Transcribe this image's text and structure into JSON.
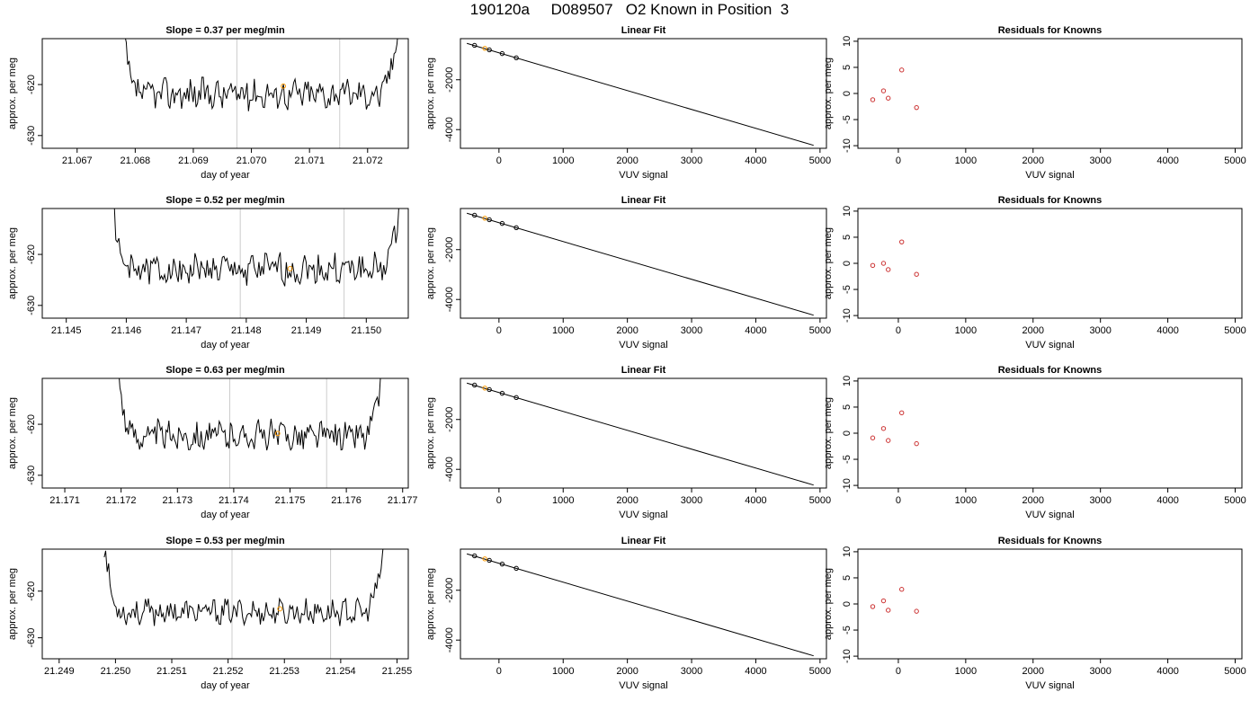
{
  "figure": {
    "title": "190120a     D089507   O2 Known in Position  3",
    "colors": {
      "line": "#000000",
      "orange": "#ff9900",
      "red": "#cc3333",
      "vline": "#cccccc",
      "frame": "#000000"
    }
  },
  "chart_data": [
    {
      "type": "line",
      "panel": "timeseries",
      "row": 0,
      "title": "Slope =  0.37  per meg/min",
      "xlabel": "day of year",
      "ylabel": "approx. per meg",
      "xlim": [
        21.0664,
        21.0727
      ],
      "ylim": [
        -632.5,
        -611.0
      ],
      "xticks": [
        21.067,
        21.068,
        21.069,
        21.07,
        21.071,
        21.072
      ],
      "xtick_labels": [
        "21.067",
        "21.068",
        "21.069",
        "21.070",
        "21.071",
        "21.072"
      ],
      "yticks": [
        -630,
        -620
      ],
      "ytick_labels": [
        "-630",
        "-620"
      ],
      "vlines": [
        21.06975,
        21.07152
      ],
      "x_start": 21.06777,
      "x_end": 21.07253,
      "y_mean": -621.8,
      "y_amp": 2.6,
      "seed": 37,
      "marker": {
        "x": 21.07055,
        "y": -620.3
      },
      "grid": false
    },
    {
      "type": "line",
      "panel": "timeseries",
      "row": 1,
      "title": "Slope =  0.52  per meg/min",
      "xlabel": "day of year",
      "ylabel": "approx. per meg",
      "xlim": [
        21.1446,
        21.1507
      ],
      "ylim": [
        -632.5,
        -611.0
      ],
      "xticks": [
        21.145,
        21.146,
        21.147,
        21.148,
        21.149,
        21.15
      ],
      "xtick_labels": [
        "21.145",
        "21.146",
        "21.147",
        "21.148",
        "21.149",
        "21.150"
      ],
      "yticks": [
        -630,
        -620
      ],
      "ytick_labels": [
        "-630",
        "-620"
      ],
      "vlines": [
        21.1479,
        21.14963
      ],
      "x_start": 21.14575,
      "x_end": 21.15057,
      "y_mean": -623.0,
      "y_amp": 2.7,
      "seed": 52,
      "marker": {
        "x": 21.14873,
        "y": -622.8
      },
      "grid": false
    },
    {
      "type": "line",
      "panel": "timeseries",
      "row": 2,
      "title": "Slope =  0.63  per meg/min",
      "xlabel": "day of year",
      "ylabel": "approx. per meg",
      "xlim": [
        21.1706,
        21.1771
      ],
      "ylim": [
        -632.5,
        -611.0
      ],
      "xticks": [
        21.171,
        21.172,
        21.173,
        21.174,
        21.175,
        21.176,
        21.177
      ],
      "xtick_labels": [
        "21.171",
        "21.172",
        "21.173",
        "21.174",
        "21.175",
        "21.176",
        "21.177"
      ],
      "yticks": [
        -630,
        -620
      ],
      "ytick_labels": [
        "-630",
        "-620"
      ],
      "vlines": [
        21.17393,
        21.17565
      ],
      "x_start": 21.17193,
      "x_end": 21.17665,
      "y_mean": -622.2,
      "y_amp": 2.5,
      "seed": 63,
      "marker": {
        "x": 21.17478,
        "y": -621.8
      },
      "grid": false
    },
    {
      "type": "line",
      "panel": "timeseries",
      "row": 3,
      "title": "Slope =  0.53  per meg/min",
      "xlabel": "day of year",
      "ylabel": "approx. per meg",
      "xlim": [
        21.2487,
        21.2552
      ],
      "ylim": [
        -634.5,
        -611.0
      ],
      "xticks": [
        21.249,
        21.25,
        21.251,
        21.252,
        21.253,
        21.254,
        21.255
      ],
      "xtick_labels": [
        "21.249",
        "21.250",
        "21.251",
        "21.252",
        "21.253",
        "21.254",
        "21.255"
      ],
      "yticks": [
        -630,
        -620
      ],
      "ytick_labels": [
        "-630",
        "-620"
      ],
      "vlines": [
        21.25207,
        21.25382
      ],
      "x_start": 21.2498,
      "x_end": 21.25477,
      "y_mean": -624.5,
      "y_amp": 2.3,
      "seed": 53,
      "marker": {
        "x": 21.25292,
        "y": -623.8
      },
      "grid": false
    },
    {
      "type": "scatter",
      "panel": "fit",
      "row": 0,
      "title": "Linear Fit",
      "xlabel": "VUV signal",
      "ylabel": "approx. per meg",
      "xlim": [
        -600,
        5100
      ],
      "ylim": [
        -4750,
        -350
      ],
      "xticks": [
        0,
        1000,
        2000,
        3000,
        4000,
        5000
      ],
      "xtick_labels": [
        "0",
        "1000",
        "2000",
        "3000",
        "4000",
        "5000"
      ],
      "yticks": [
        -4000,
        -2000
      ],
      "ytick_labels": [
        "-4000",
        "-2000"
      ],
      "line": {
        "x": [
          -500,
          4900
        ],
        "y": [
          -540,
          -4630
        ]
      },
      "points": [
        {
          "x": -380,
          "y": -620,
          "color": "black"
        },
        {
          "x": -220,
          "y": -740,
          "color": "orange"
        },
        {
          "x": -150,
          "y": -800,
          "color": "black"
        },
        {
          "x": 50,
          "y": -950,
          "color": "black"
        },
        {
          "x": 270,
          "y": -1120,
          "color": "black"
        }
      ],
      "grid": false
    },
    {
      "type": "scatter",
      "panel": "fit",
      "row": 1,
      "title": "Linear Fit",
      "xlabel": "VUV signal",
      "ylabel": "approx. per meg",
      "xlim": [
        -600,
        5100
      ],
      "ylim": [
        -4750,
        -350
      ],
      "xticks": [
        0,
        1000,
        2000,
        3000,
        4000,
        5000
      ],
      "xtick_labels": [
        "0",
        "1000",
        "2000",
        "3000",
        "4000",
        "5000"
      ],
      "yticks": [
        -4000,
        -2000
      ],
      "ytick_labels": [
        "-4000",
        "-2000"
      ],
      "line": {
        "x": [
          -500,
          4900
        ],
        "y": [
          -540,
          -4630
        ]
      },
      "points": [
        {
          "x": -380,
          "y": -620,
          "color": "black"
        },
        {
          "x": -220,
          "y": -740,
          "color": "orange"
        },
        {
          "x": -150,
          "y": -800,
          "color": "black"
        },
        {
          "x": 50,
          "y": -950,
          "color": "black"
        },
        {
          "x": 270,
          "y": -1120,
          "color": "black"
        }
      ],
      "grid": false
    },
    {
      "type": "scatter",
      "panel": "fit",
      "row": 2,
      "title": "Linear Fit",
      "xlabel": "VUV signal",
      "ylabel": "approx. per meg",
      "xlim": [
        -600,
        5100
      ],
      "ylim": [
        -4750,
        -350
      ],
      "xticks": [
        0,
        1000,
        2000,
        3000,
        4000,
        5000
      ],
      "xtick_labels": [
        "0",
        "1000",
        "2000",
        "3000",
        "4000",
        "5000"
      ],
      "yticks": [
        -4000,
        -2000
      ],
      "ytick_labels": [
        "-4000",
        "-2000"
      ],
      "line": {
        "x": [
          -500,
          4900
        ],
        "y": [
          -540,
          -4630
        ]
      },
      "points": [
        {
          "x": -380,
          "y": -620,
          "color": "black"
        },
        {
          "x": -220,
          "y": -740,
          "color": "orange"
        },
        {
          "x": -150,
          "y": -800,
          "color": "black"
        },
        {
          "x": 50,
          "y": -950,
          "color": "black"
        },
        {
          "x": 270,
          "y": -1120,
          "color": "black"
        }
      ],
      "grid": false
    },
    {
      "type": "scatter",
      "panel": "fit",
      "row": 3,
      "title": "Linear Fit",
      "xlabel": "VUV signal",
      "ylabel": "approx. per meg",
      "xlim": [
        -600,
        5100
      ],
      "ylim": [
        -4750,
        -350
      ],
      "xticks": [
        0,
        1000,
        2000,
        3000,
        4000,
        5000
      ],
      "xtick_labels": [
        "0",
        "1000",
        "2000",
        "3000",
        "4000",
        "5000"
      ],
      "yticks": [
        -4000,
        -2000
      ],
      "ytick_labels": [
        "-4000",
        "-2000"
      ],
      "line": {
        "x": [
          -500,
          4900
        ],
        "y": [
          -540,
          -4630
        ]
      },
      "points": [
        {
          "x": -380,
          "y": -620,
          "color": "black"
        },
        {
          "x": -220,
          "y": -740,
          "color": "orange"
        },
        {
          "x": -150,
          "y": -800,
          "color": "black"
        },
        {
          "x": 50,
          "y": -950,
          "color": "black"
        },
        {
          "x": 270,
          "y": -1120,
          "color": "black"
        }
      ],
      "grid": false
    },
    {
      "type": "scatter",
      "panel": "residuals",
      "row": 0,
      "title": "Residuals for Knowns",
      "xlabel": "VUV signal",
      "ylabel": "approx. per meg",
      "xlim": [
        -600,
        5100
      ],
      "ylim": [
        -10.5,
        10.5
      ],
      "xticks": [
        0,
        1000,
        2000,
        3000,
        4000,
        5000
      ],
      "xtick_labels": [
        "0",
        "1000",
        "2000",
        "3000",
        "4000",
        "5000"
      ],
      "yticks": [
        -10,
        -5,
        0,
        5,
        10
      ],
      "ytick_labels": [
        "-10",
        "-5",
        "0",
        "5",
        "10"
      ],
      "points": [
        {
          "x": -380,
          "y": -1.2
        },
        {
          "x": -220,
          "y": 0.5
        },
        {
          "x": -150,
          "y": -0.9
        },
        {
          "x": 50,
          "y": 4.5
        },
        {
          "x": 270,
          "y": -2.7
        }
      ],
      "grid": false
    },
    {
      "type": "scatter",
      "panel": "residuals",
      "row": 1,
      "title": "Residuals for Knowns",
      "xlabel": "VUV signal",
      "ylabel": "approx. per meg",
      "xlim": [
        -600,
        5100
      ],
      "ylim": [
        -10.5,
        10.5
      ],
      "xticks": [
        0,
        1000,
        2000,
        3000,
        4000,
        5000
      ],
      "xtick_labels": [
        "0",
        "1000",
        "2000",
        "3000",
        "4000",
        "5000"
      ],
      "yticks": [
        -10,
        -5,
        0,
        5,
        10
      ],
      "ytick_labels": [
        "-10",
        "-5",
        "0",
        "5",
        "10"
      ],
      "points": [
        {
          "x": -380,
          "y": -0.4
        },
        {
          "x": -220,
          "y": 0.0
        },
        {
          "x": -150,
          "y": -1.2
        },
        {
          "x": 50,
          "y": 4.1
        },
        {
          "x": 270,
          "y": -2.1
        }
      ],
      "grid": false
    },
    {
      "type": "scatter",
      "panel": "residuals",
      "row": 2,
      "title": "Residuals for Knowns",
      "xlabel": "VUV signal",
      "ylabel": "approx. per meg",
      "xlim": [
        -600,
        5100
      ],
      "ylim": [
        -10.5,
        10.5
      ],
      "xticks": [
        0,
        1000,
        2000,
        3000,
        4000,
        5000
      ],
      "xtick_labels": [
        "0",
        "1000",
        "2000",
        "3000",
        "4000",
        "5000"
      ],
      "yticks": [
        -10,
        -5,
        0,
        5,
        10
      ],
      "ytick_labels": [
        "-10",
        "-5",
        "0",
        "5",
        "10"
      ],
      "points": [
        {
          "x": -380,
          "y": -0.9
        },
        {
          "x": -220,
          "y": 0.9
        },
        {
          "x": -150,
          "y": -1.4
        },
        {
          "x": 50,
          "y": 3.9
        },
        {
          "x": 270,
          "y": -2.0
        }
      ],
      "grid": false
    },
    {
      "type": "scatter",
      "panel": "residuals",
      "row": 3,
      "title": "Residuals for Knowns",
      "xlabel": "VUV signal",
      "ylabel": "approx. per meg",
      "xlim": [
        -600,
        5100
      ],
      "ylim": [
        -10.5,
        10.5
      ],
      "xticks": [
        0,
        1000,
        2000,
        3000,
        4000,
        5000
      ],
      "xtick_labels": [
        "0",
        "1000",
        "2000",
        "3000",
        "4000",
        "5000"
      ],
      "yticks": [
        -10,
        -5,
        0,
        5,
        10
      ],
      "ytick_labels": [
        "-10",
        "-5",
        "0",
        "5",
        "10"
      ],
      "points": [
        {
          "x": -380,
          "y": -0.5
        },
        {
          "x": -220,
          "y": 0.6
        },
        {
          "x": -150,
          "y": -1.2
        },
        {
          "x": 50,
          "y": 2.8
        },
        {
          "x": 270,
          "y": -1.4
        }
      ],
      "grid": false
    }
  ]
}
